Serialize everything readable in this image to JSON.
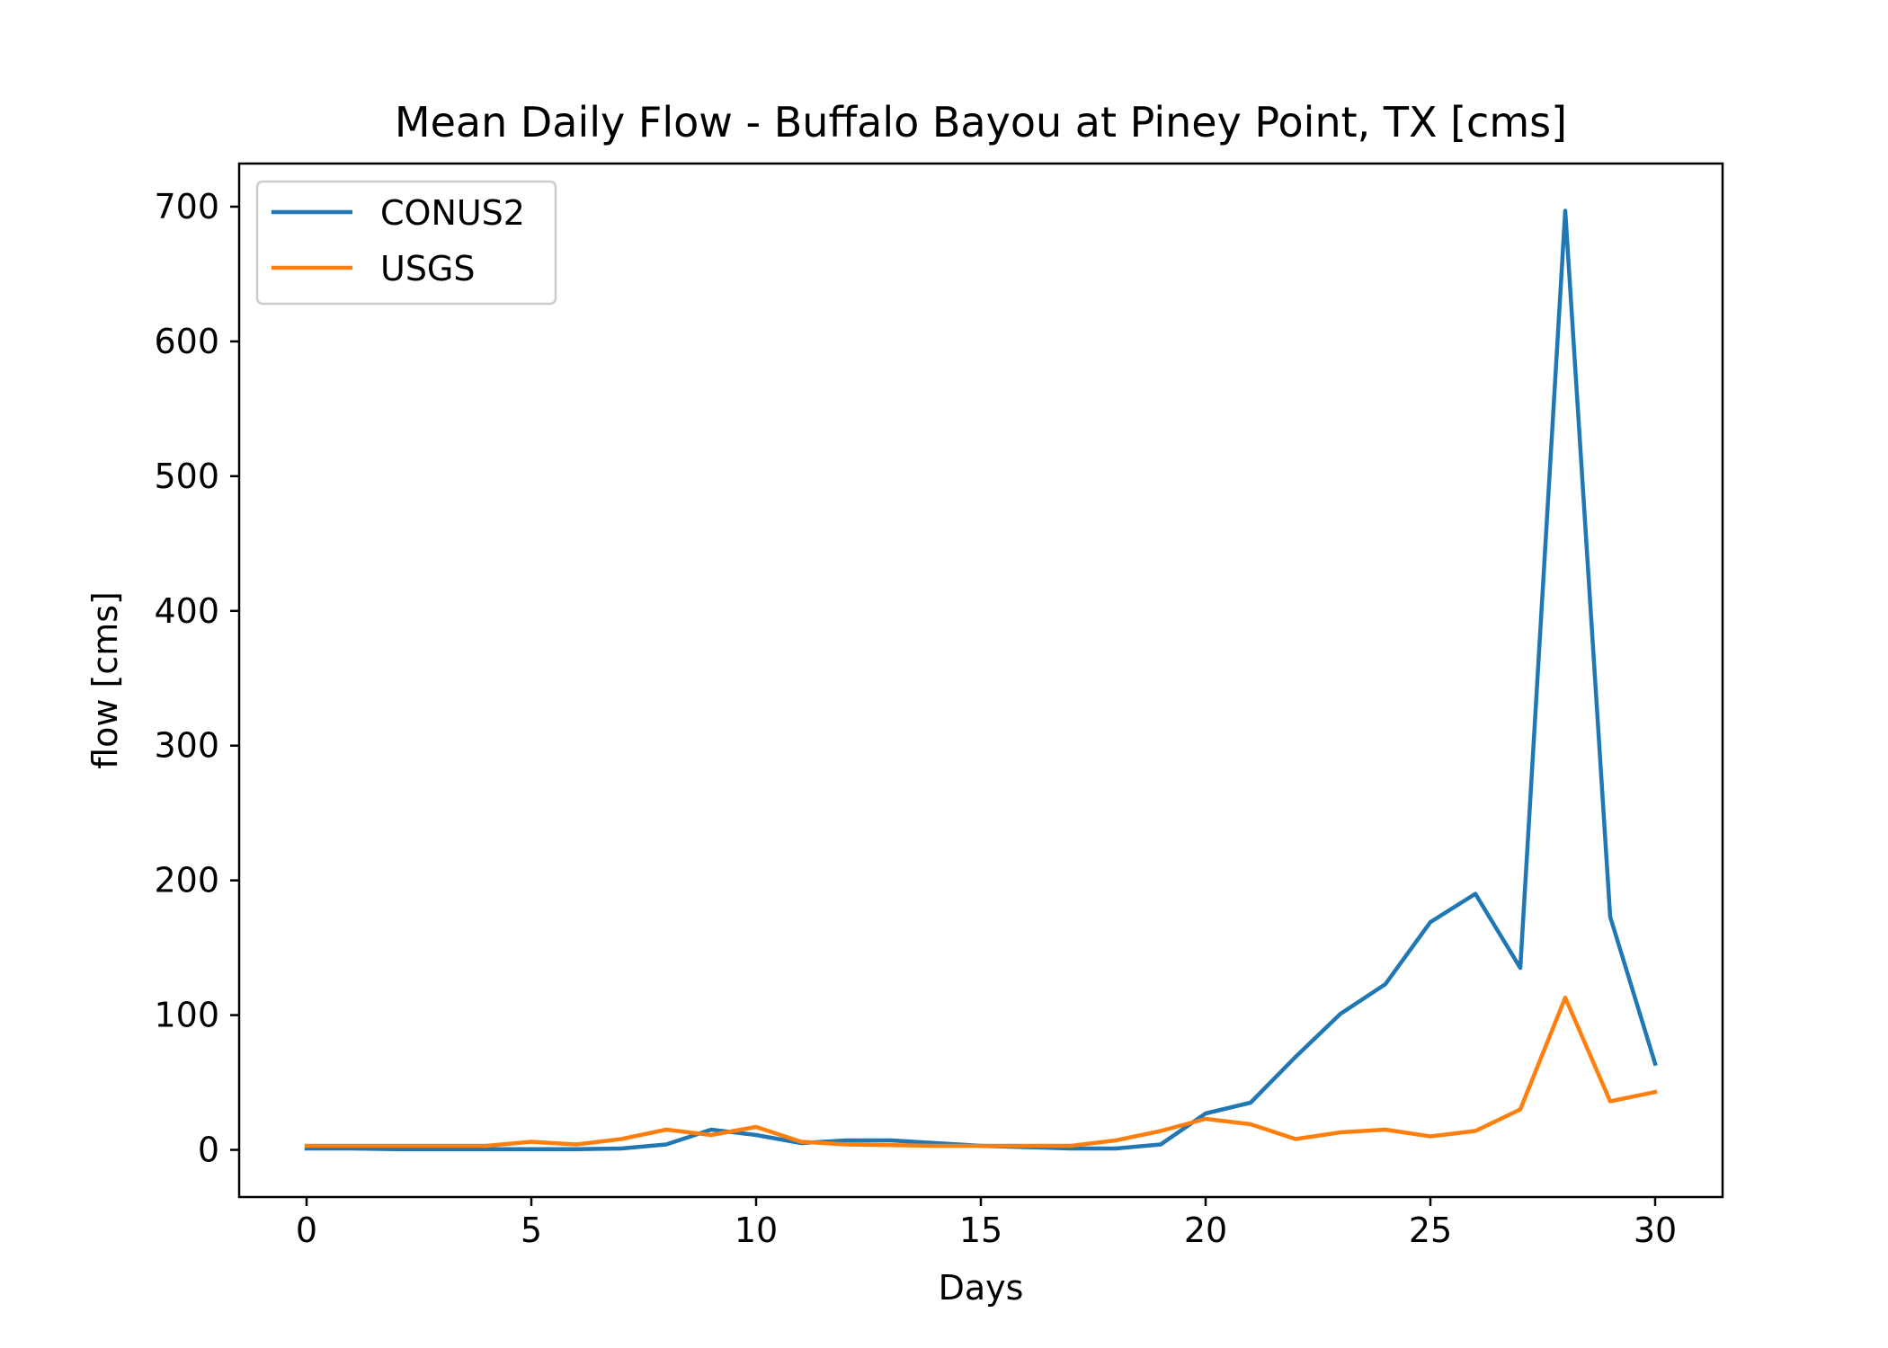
{
  "chart_data": {
    "type": "line",
    "title": "Mean Daily Flow - Buffalo Bayou at Piney Point, TX [cms]",
    "xlabel": "Days",
    "ylabel": "flow [cms]",
    "xlim": [
      -1.5,
      31.5
    ],
    "ylim": [
      -35,
      732
    ],
    "xticks": [
      0,
      5,
      10,
      15,
      20,
      25,
      30
    ],
    "yticks": [
      0,
      100,
      200,
      300,
      400,
      500,
      600,
      700
    ],
    "grid": false,
    "legend_position": "top-left",
    "x": [
      0,
      1,
      2,
      3,
      4,
      5,
      6,
      7,
      8,
      9,
      10,
      11,
      12,
      13,
      14,
      15,
      16,
      17,
      18,
      19,
      20,
      21,
      22,
      23,
      24,
      25,
      26,
      27,
      28,
      29,
      30
    ],
    "series": [
      {
        "name": "CONUS2",
        "color": "#1f77b4",
        "values": [
          1,
          1,
          0.5,
          0.5,
          0.5,
          0.5,
          0.5,
          1,
          4,
          15,
          11,
          5,
          7,
          7,
          5,
          3,
          2,
          1,
          1,
          4,
          27,
          35,
          69,
          101,
          123,
          169,
          190,
          135,
          697,
          173,
          64
        ]
      },
      {
        "name": "USGS",
        "color": "#ff7f0e",
        "values": [
          3,
          3,
          3,
          3,
          3,
          6,
          4,
          8,
          15,
          11,
          17,
          6,
          4,
          3.5,
          3,
          3,
          3,
          3,
          7,
          14,
          23,
          19,
          8,
          13,
          15,
          10,
          14,
          30,
          113,
          36,
          43
        ]
      }
    ]
  }
}
